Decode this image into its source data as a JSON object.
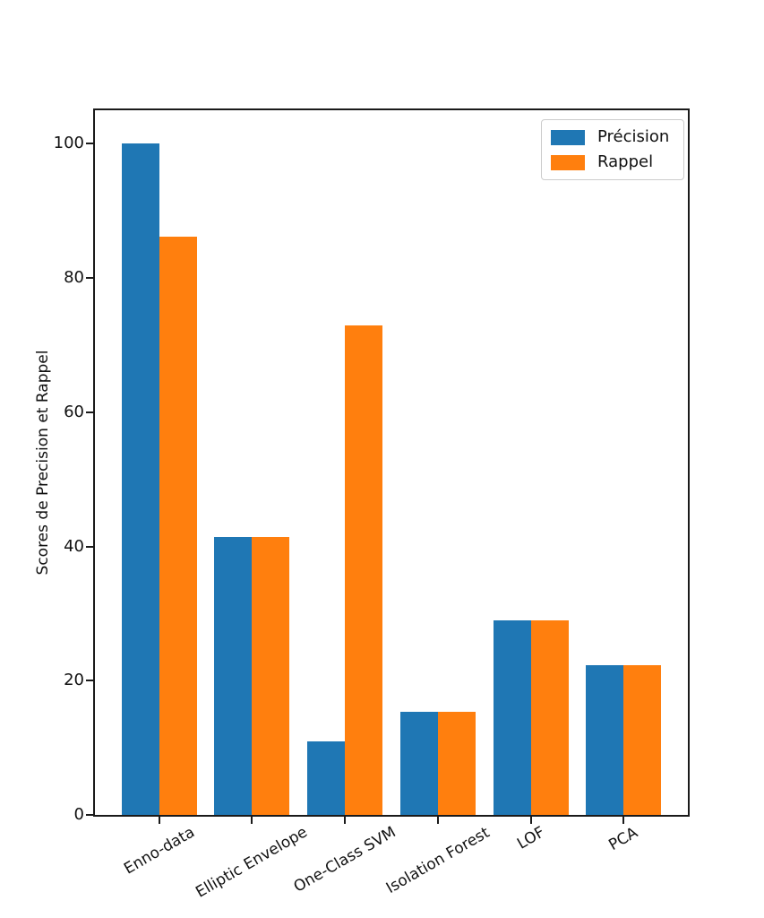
{
  "page": {
    "background": "#ffffff"
  },
  "chart_data": {
    "type": "bar",
    "title": "",
    "xlabel": "",
    "ylabel": "Scores de Precision et Rappel",
    "categories": [
      "Enno-data",
      "Elliptic Envelope",
      "One-Class SVM",
      "Isolation Forest",
      "LOF",
      "PCA"
    ],
    "series": [
      {
        "name": "Précision",
        "color": "#1f77b4",
        "values": [
          100,
          41.4,
          11,
          15.4,
          29,
          22.3
        ]
      },
      {
        "name": "Rappel",
        "color": "#ff7f0e",
        "values": [
          86.1,
          41.4,
          72.9,
          15.4,
          29,
          22.3
        ]
      }
    ],
    "ylim": [
      0,
      105
    ],
    "yticks": [
      0,
      20,
      40,
      60,
      80,
      100
    ],
    "grid": false,
    "legend": {
      "position": "upper right",
      "entries": [
        "Précision",
        "Rappel"
      ]
    }
  }
}
